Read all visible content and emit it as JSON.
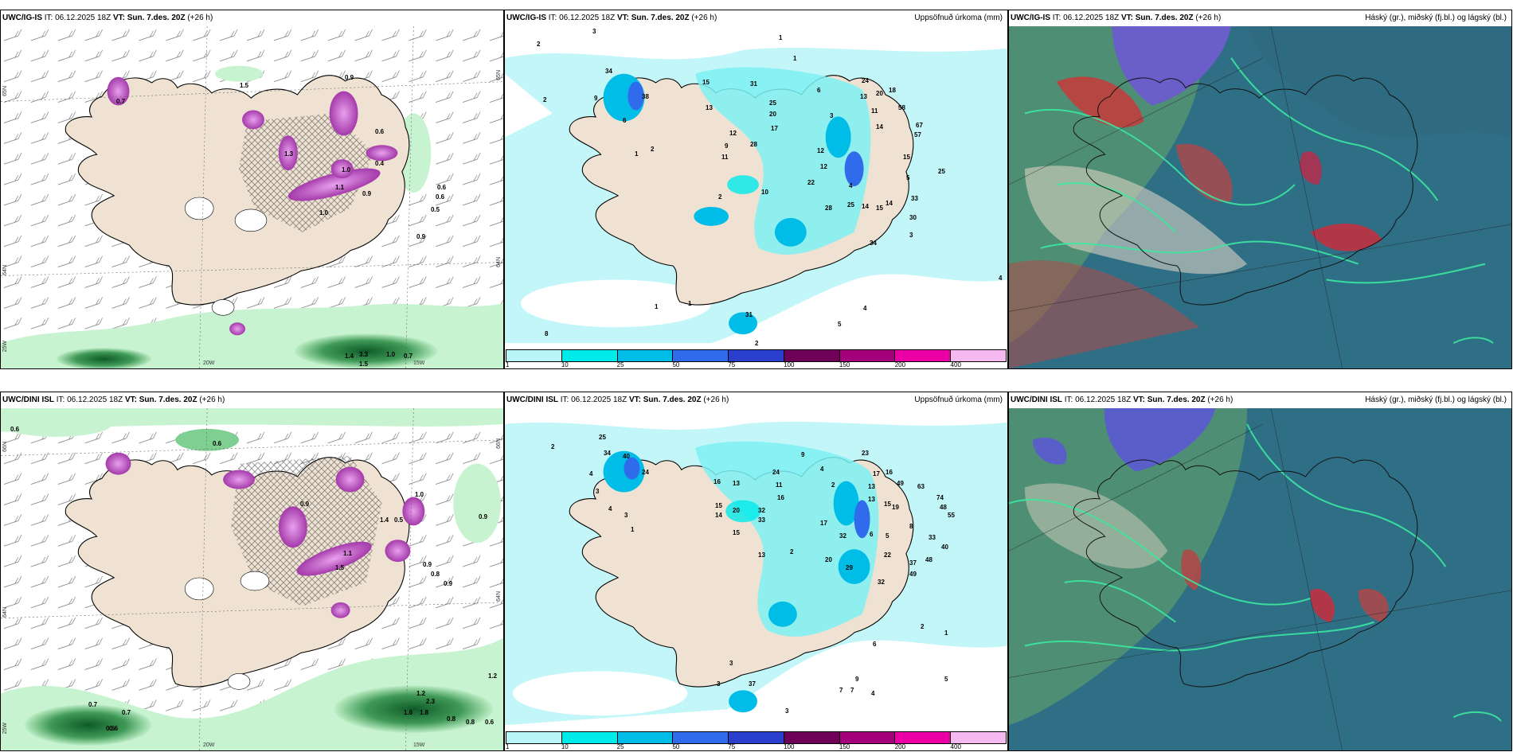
{
  "panels": [
    {
      "id": "p1",
      "model": "UWC/IG-IS",
      "it_label": "IT:",
      "it_value": "06.12.2025 18Z",
      "vt_label": "VT:",
      "vt_value": "Sun. 7.des. 20Z",
      "lead": "(+26 h)",
      "right_title": "",
      "lat_labels": [
        "65N",
        "64N",
        "65N",
        "64N"
      ],
      "lon_labels": [
        "25W",
        "20W",
        "15W"
      ],
      "values": [
        "0.7",
        "0.9",
        "0.6",
        "1.3",
        "1.0",
        "0.9",
        "1.1",
        "0.4",
        "0.6",
        "1.0",
        "0.6",
        "0.5",
        "0.9",
        "1.5",
        "1.4",
        "3.3",
        "1.0",
        "0.7",
        "1.5"
      ]
    },
    {
      "id": "p2",
      "model": "UWC/IG-IS",
      "it_label": "IT:",
      "it_value": "06.12.2025 18Z",
      "vt_label": "VT:",
      "vt_value": "Sun. 7.des. 20Z",
      "lead": "(+26 h)",
      "right_title": "Uppsöfnuð úrkoma (mm)",
      "values": [
        "2",
        "3",
        "2",
        "34",
        "9",
        "38",
        "6",
        "1",
        "2",
        "1",
        "15",
        "13",
        "12",
        "9",
        "11",
        "31",
        "25",
        "20",
        "17",
        "28",
        "6",
        "3",
        "24",
        "13",
        "20",
        "18",
        "11",
        "14",
        "58",
        "67",
        "57",
        "12",
        "12",
        "15",
        "22",
        "4",
        "5",
        "14",
        "28",
        "25",
        "14",
        "15",
        "30",
        "25",
        "33",
        "3",
        "34",
        "10",
        "2",
        "4",
        "8",
        "1",
        "1",
        "5",
        "4",
        "31",
        "2",
        "1"
      ]
    },
    {
      "id": "p3",
      "model": "UWC/IG-IS",
      "it_label": "IT:",
      "it_value": "06.12.2025 18Z",
      "vt_label": "VT:",
      "vt_value": "Sun. 7.des. 20Z",
      "lead": "(+26 h)",
      "right_title": "Háský (gr.), miðský (fj.bl.) og lágský (bl.)"
    },
    {
      "id": "p4",
      "model": "UWC/DINI ISL",
      "it_label": "IT:",
      "it_value": "06.12.2025 18Z",
      "vt_label": "VT:",
      "vt_value": "Sun. 7.des. 20Z",
      "lead": "(+26 h)",
      "right_title": "",
      "lat_labels": [
        "66N",
        "64N",
        "66N",
        "64N"
      ],
      "lon_labels": [
        "25W",
        "20W",
        "15W"
      ],
      "values": [
        "0.6",
        "0.6",
        "0.9",
        "1.0",
        "1.4",
        "0.5",
        "0.9",
        "1.1",
        "1.5",
        "0.9",
        "0.8",
        "0.9",
        "0.6",
        "0.7",
        "0.7",
        "1.2",
        "2.3",
        "1.6",
        "1.8",
        "0.8",
        "0.8",
        "0.6",
        "0.6",
        "1.2"
      ]
    },
    {
      "id": "p5",
      "model": "UWC/DINI ISL",
      "it_label": "IT:",
      "it_value": "06.12.2025 18Z",
      "vt_label": "VT:",
      "vt_value": "Sun. 7.des. 20Z",
      "lead": "(+26 h)",
      "right_title": "Uppsöfnuð úrkoma (mm)",
      "values": [
        "2",
        "25",
        "34",
        "40",
        "24",
        "4",
        "3",
        "4",
        "3",
        "1",
        "16",
        "13",
        "15",
        "14",
        "20",
        "32",
        "33",
        "15",
        "9",
        "4",
        "2",
        "24",
        "11",
        "16",
        "23",
        "13",
        "17",
        "16",
        "13",
        "15",
        "19",
        "49",
        "63",
        "74",
        "48",
        "55",
        "33",
        "40",
        "17",
        "32",
        "6",
        "5",
        "8",
        "22",
        "20",
        "29",
        "32",
        "37",
        "48",
        "49",
        "13",
        "2",
        "3",
        "37",
        "3",
        "2",
        "1",
        "6",
        "9",
        "7",
        "7",
        "4",
        "5",
        "3"
      ]
    },
    {
      "id": "p6",
      "model": "UWC/DINI ISL",
      "it_label": "IT:",
      "it_value": "06.12.2025 18Z",
      "vt_label": "VT:",
      "vt_value": "Sun. 7.des. 20Z",
      "lead": "(+26 h)",
      "right_title": "Háský (gr.), miðský (fj.bl.) og lágský (bl.)"
    }
  ],
  "legend": {
    "ticks": [
      "1",
      "10",
      "25",
      "50",
      "75",
      "100",
      "150",
      "200",
      "400"
    ],
    "colors": [
      "#b7f5f7",
      "#00eaea",
      "#00bde8",
      "#2f6bea",
      "#2b3fcf",
      "#6e0058",
      "#a4007c",
      "#ea00a4",
      "#f6b9f0"
    ]
  },
  "colors": {
    "land": "#efe2d2",
    "sea_precip_light": "#c8f3d0",
    "sea_precip_dark": "#1e7a3a",
    "magenta": "#c055c8",
    "cyan_light": "#bff6f8",
    "cloud_sea": "#2f6f86",
    "cloud_green": "#4e8e74"
  }
}
